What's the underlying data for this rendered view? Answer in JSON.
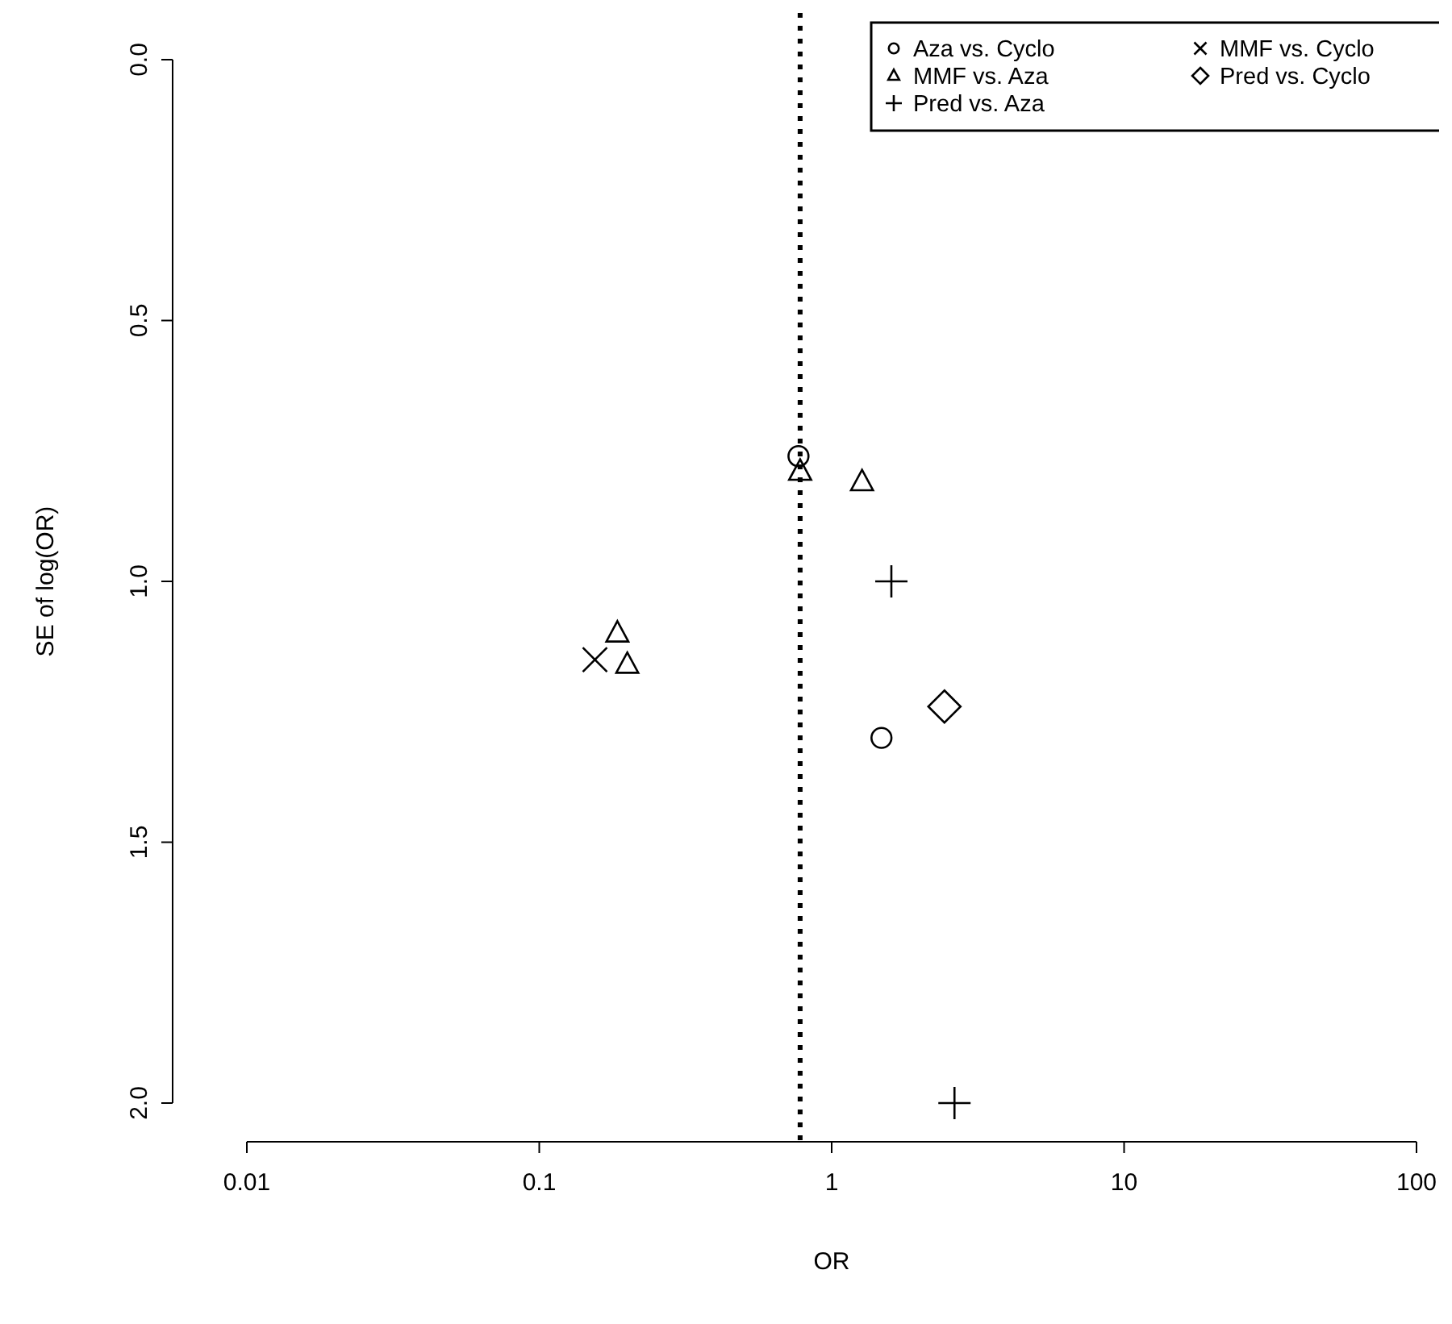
{
  "chart_data": {
    "type": "scatter",
    "xlabel": "OR",
    "ylabel": "SE of log(OR)",
    "log": "x",
    "xlim": [
      0.01,
      100
    ],
    "xticks": [
      0.01,
      0.1,
      1,
      10,
      100
    ],
    "ylim": [
      2,
      0
    ],
    "yticks": [
      {
        "value": 0,
        "label": "0.0"
      },
      {
        "value": 0.5,
        "label": "0.5"
      },
      {
        "value": 1,
        "label": "1.0"
      },
      {
        "value": 1.5,
        "label": "1.5"
      },
      {
        "value": 2,
        "label": "2.0"
      }
    ],
    "grid": false,
    "legend": "top right",
    "series": [
      {
        "name": "Aza vs. Cyclo",
        "color": "#000000",
        "marker": "circle",
        "x": [
          0.77,
          1.48
        ],
        "values": [
          0.76,
          1.3
        ]
      },
      {
        "name": "MMF vs. Aza",
        "color": "#000000",
        "marker": "triangle",
        "x": [
          0.78,
          1.27,
          0.185,
          0.2
        ],
        "values": [
          0.79,
          0.81,
          1.1,
          1.16
        ]
      },
      {
        "name": "Pred vs. Aza",
        "color": "#000000",
        "marker": "plus",
        "x": [
          1.6,
          2.63
        ],
        "values": [
          1.0,
          2.0
        ]
      },
      {
        "name": "MMF vs. Cyclo",
        "color": "#000000",
        "marker": "cross",
        "x": [
          0.155
        ],
        "values": [
          1.15
        ]
      },
      {
        "name": "Pred vs. Cyclo",
        "color": "#000000",
        "marker": "diamond",
        "x": [
          2.43
        ],
        "values": [
          1.24
        ]
      }
    ],
    "ref_lines": [
      {
        "axis": "x",
        "value": 0.78,
        "line_style": "dotted",
        "color": "#000000"
      }
    ]
  }
}
